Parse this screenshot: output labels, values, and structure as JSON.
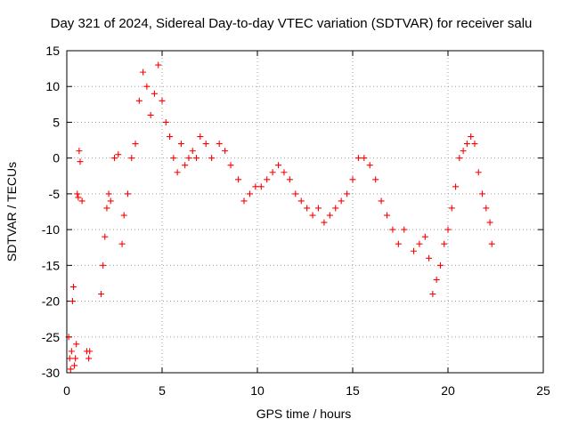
{
  "chart_data": {
    "type": "scatter",
    "title": "Day 321 of 2024, Sidereal Day-to-day VTEC variation (SDTVAR) for receiver salu",
    "xlabel": "GPS time / hours",
    "ylabel": "SDTVAR / TECUs",
    "xlim": [
      0,
      25
    ],
    "ylim": [
      -30,
      15
    ],
    "xticks": [
      "0",
      "5",
      "10",
      "15",
      "20",
      "25"
    ],
    "yticks": [
      "15",
      "10",
      "5",
      "0",
      "-5",
      "-10",
      "-15",
      "-20",
      "-25",
      "-30"
    ],
    "grid": true,
    "marker": "+",
    "color": "#ff0000",
    "series": [
      {
        "name": "SDTVAR",
        "x": [
          0.1,
          0.15,
          0.2,
          0.25,
          0.3,
          0.35,
          0.4,
          0.45,
          0.5,
          0.55,
          0.6,
          0.65,
          0.7,
          0.8,
          1.05,
          1.15,
          1.2,
          1.8,
          1.9,
          2.0,
          2.1,
          2.2,
          2.3,
          2.5,
          2.7,
          2.9,
          3.0,
          3.2,
          3.4,
          3.6,
          3.8,
          4.0,
          4.2,
          4.4,
          4.6,
          4.8,
          5.0,
          5.2,
          5.4,
          5.6,
          5.8,
          6.0,
          6.2,
          6.4,
          6.6,
          6.8,
          7.0,
          7.3,
          7.6,
          8.0,
          8.3,
          8.6,
          9.0,
          9.3,
          9.6,
          9.9,
          10.2,
          10.5,
          10.8,
          11.1,
          11.4,
          11.7,
          12.0,
          12.3,
          12.6,
          12.9,
          13.2,
          13.5,
          13.8,
          14.1,
          14.4,
          14.7,
          15.0,
          15.3,
          15.6,
          15.9,
          16.2,
          16.5,
          16.8,
          17.1,
          17.4,
          17.7,
          18.2,
          18.5,
          18.8,
          19.0,
          19.2,
          19.4,
          19.6,
          19.8,
          20.0,
          20.2,
          20.4,
          20.6,
          20.8,
          21.0,
          21.2,
          21.4,
          21.6,
          21.8,
          22.0,
          22.2,
          22.3
        ],
        "y": [
          -25,
          -28,
          -29.5,
          -27,
          -20,
          -18,
          -29,
          -28,
          -26,
          -5,
          -5.5,
          1,
          -0.5,
          -6,
          -27,
          -28,
          -27,
          -19,
          -15,
          -11,
          -7,
          -5,
          -6,
          0,
          0.5,
          -12,
          -8,
          -5,
          0,
          2,
          8,
          12,
          10,
          6,
          9,
          13,
          8,
          5,
          3,
          0,
          -2,
          2,
          -1,
          0,
          1,
          0,
          3,
          2,
          0,
          2,
          1,
          -1,
          -3,
          -6,
          -5,
          -4,
          -4,
          -3,
          -2,
          -1,
          -2,
          -3,
          -5,
          -6,
          -7,
          -8,
          -7,
          -9,
          -8,
          -7,
          -6,
          -5,
          -3,
          0,
          0,
          -1,
          -3,
          -6,
          -8,
          -10,
          -12,
          -10,
          -13,
          -12,
          -11,
          -14,
          -19,
          -17,
          -15,
          -12,
          -10,
          -7,
          -4,
          0,
          1,
          2,
          3,
          2,
          -2,
          -5,
          -7,
          -9,
          -12
        ]
      }
    ]
  }
}
